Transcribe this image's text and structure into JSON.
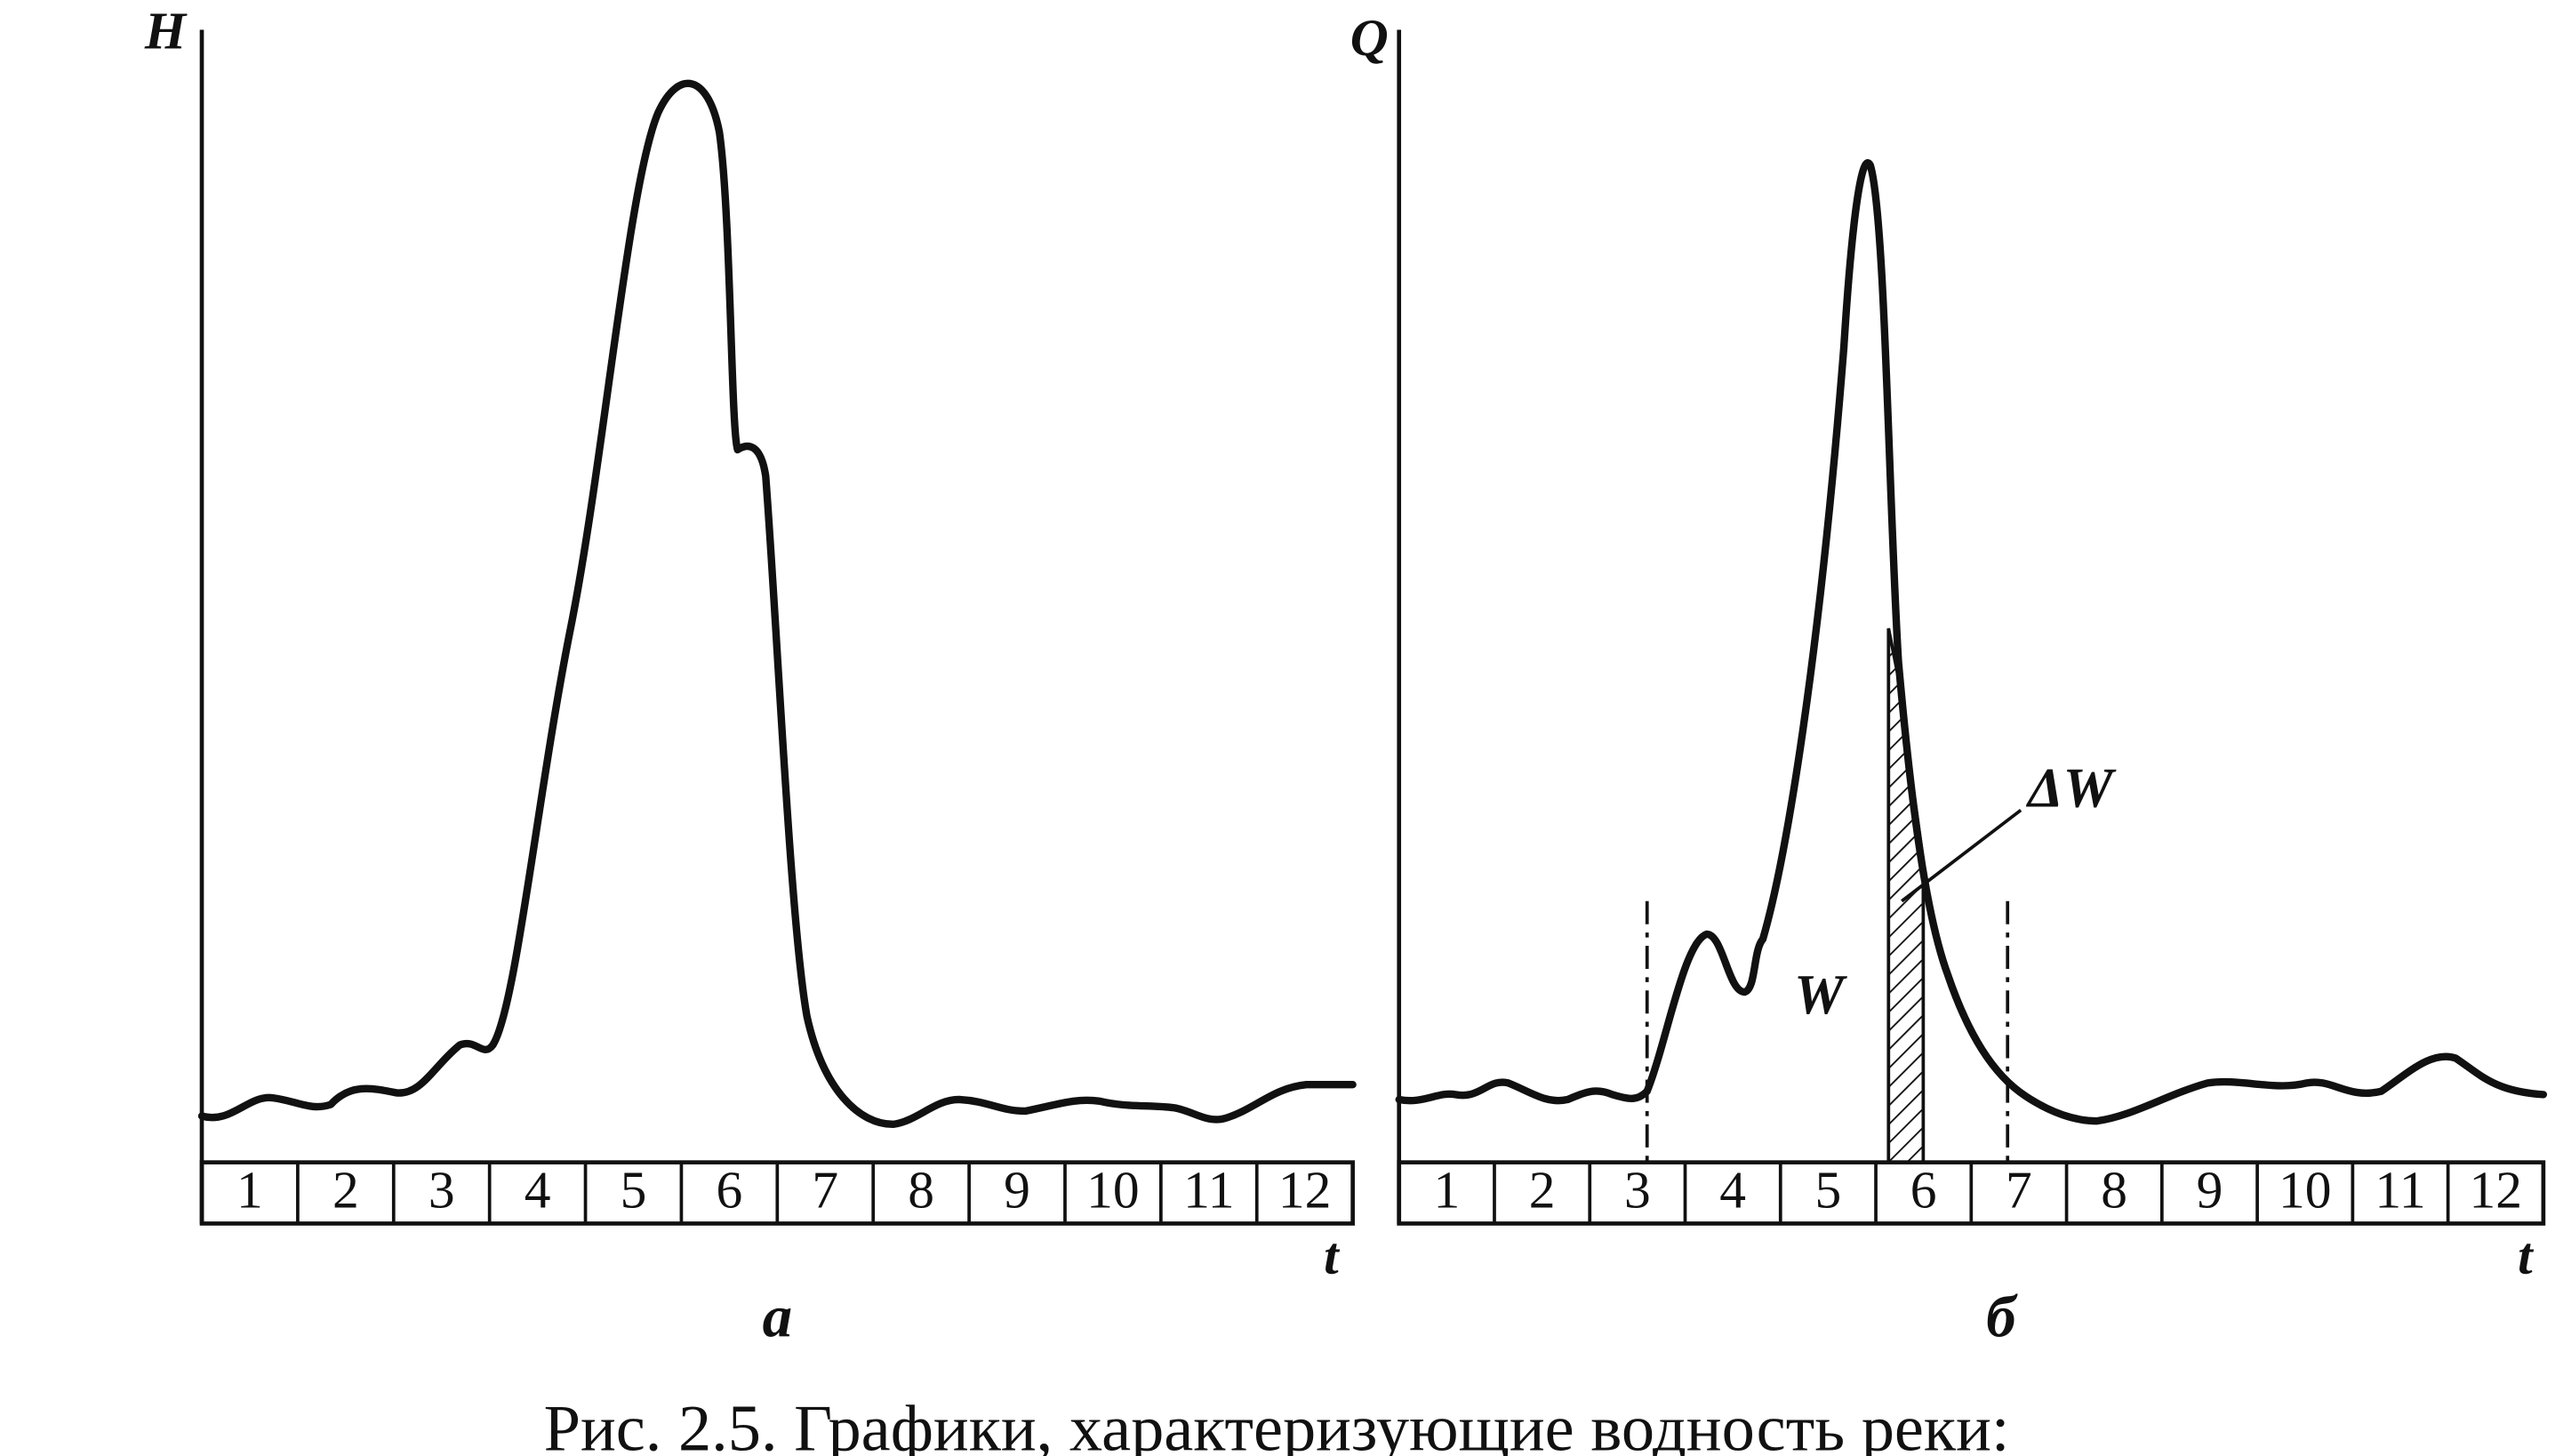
{
  "panels": [
    {
      "y_label": "H",
      "x_label": "t",
      "label": "а",
      "months": [
        "1",
        "2",
        "3",
        "4",
        "5",
        "6",
        "7",
        "8",
        "9",
        "10",
        "11",
        "12"
      ]
    },
    {
      "y_label": "Q",
      "x_label": "t",
      "label": "б",
      "months": [
        "1",
        "2",
        "3",
        "4",
        "5",
        "6",
        "7",
        "8",
        "9",
        "10",
        "11",
        "12"
      ],
      "annotations": [
        "W",
        "ΔW"
      ]
    }
  ],
  "caption": "Рис. 2.5. Графики, характеризующие водность реки:"
}
